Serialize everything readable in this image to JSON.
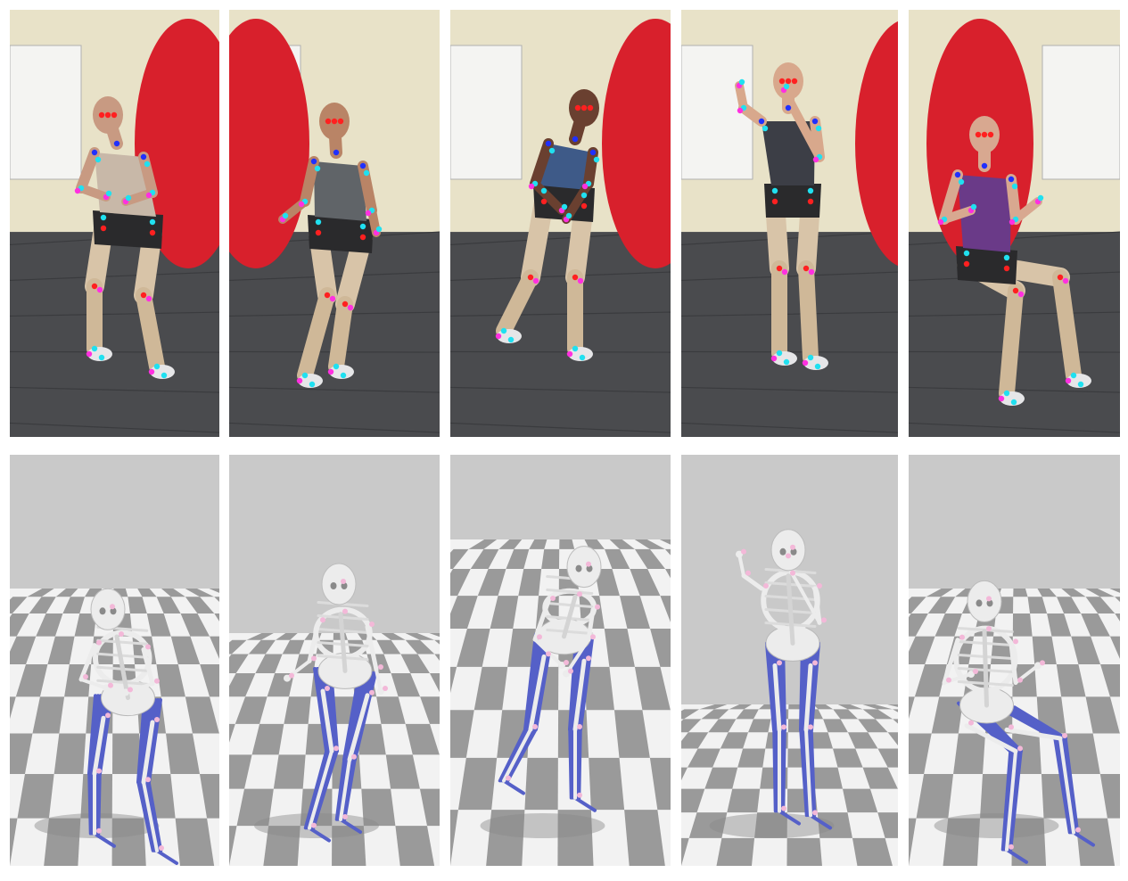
{
  "panels": {
    "photo_frames": [
      "photo-squat",
      "photo-walk",
      "photo-run",
      "photo-jump",
      "photo-sit"
    ],
    "sim_frames": [
      "sim-squat",
      "sim-walk",
      "sim-run",
      "sim-jump",
      "sim-sit"
    ]
  },
  "colors": {
    "background": "#ffffff",
    "lab_wall": "#e8e2c8",
    "lab_floor": "#4a4b4e",
    "red_partition": "#d8202c",
    "sim_backdrop": "#c9c9c9",
    "checker_light": "#f2f2f2",
    "checker_dark": "#9a9a9a",
    "bone": "#ececec",
    "muscle": "#5560c8",
    "marker_red": "#ff2020",
    "marker_blue": "#2030ff",
    "marker_cyan": "#20e0f0",
    "marker_magenta": "#ff30e0",
    "marker_pink_sim": "#f3b8d8"
  },
  "icons": {
    "skeleton": "skeleton-figure",
    "person": "person-figure",
    "marker": "keypoint-dot"
  }
}
